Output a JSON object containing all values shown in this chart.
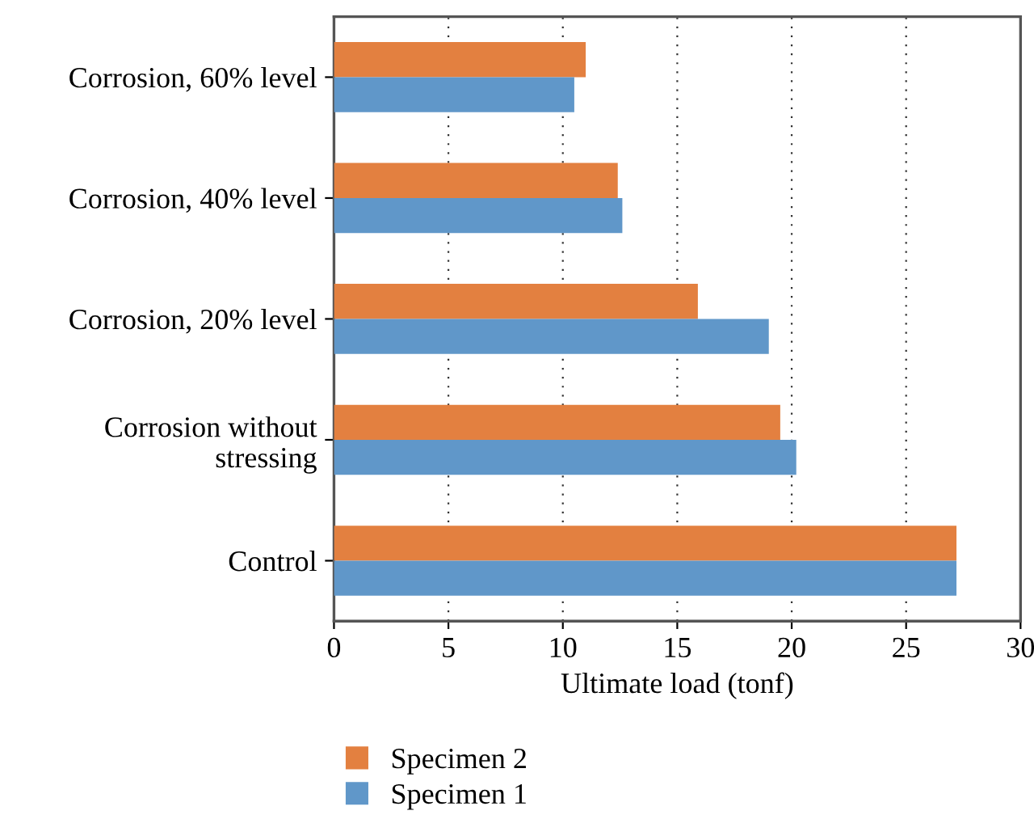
{
  "chart_data": {
    "type": "bar",
    "orientation": "horizontal",
    "categories": [
      "Corrosion, 60% level",
      "Corrosion, 40% level",
      "Corrosion, 20% level",
      "Corrosion without\nstressing",
      "Control"
    ],
    "series": [
      {
        "name": "Specimen 2",
        "color": "#e38040",
        "values": [
          11.0,
          12.4,
          15.9,
          19.5,
          27.2
        ]
      },
      {
        "name": "Specimen 1",
        "color": "#6097c9",
        "values": [
          10.5,
          12.6,
          19.0,
          20.2,
          27.2
        ]
      }
    ],
    "xlabel": "Ultimate load (tonf)",
    "xlim": [
      0,
      30
    ],
    "xticks": [
      0,
      5,
      10,
      15,
      20,
      25,
      30
    ],
    "grid": "x",
    "legend": "bottom"
  }
}
